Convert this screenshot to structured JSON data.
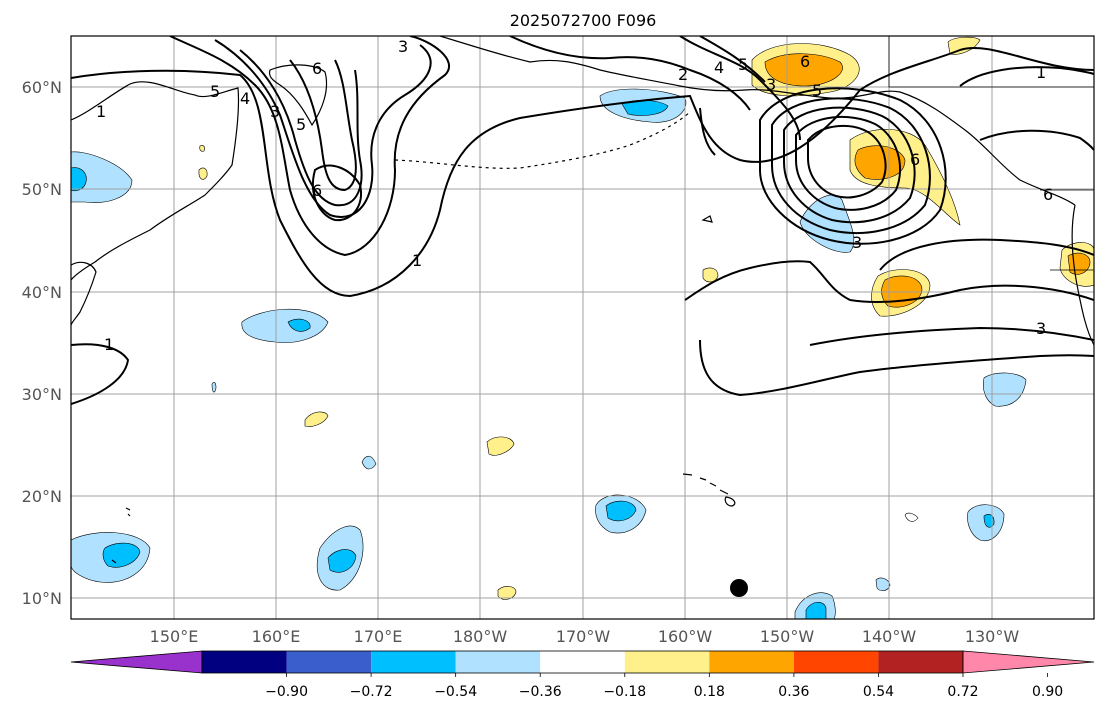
{
  "title": "2025072700 F096",
  "lat_labels": [
    "60°N",
    "50°N",
    "40°N",
    "30°N",
    "20°N",
    "10°N"
  ],
  "lon_labels": [
    "150°E",
    "160°E",
    "170°E",
    "180°W",
    "170°W",
    "160°W",
    "150°W",
    "140°W",
    "130°W"
  ],
  "contour_labels": [
    "1",
    "1",
    "1",
    "1",
    "3",
    "3",
    "3",
    "2",
    "4",
    "5",
    "6",
    "5",
    "4",
    "3",
    "5",
    "6",
    "6",
    "6",
    "5",
    "3",
    "6"
  ],
  "colorbar": {
    "ticks": [
      "−0.90",
      "−0.72",
      "−0.54",
      "−0.36",
      "−0.18",
      "0.18",
      "0.36",
      "0.54",
      "0.72",
      "0.90"
    ],
    "colors": [
      "#9932cc",
      "#000080",
      "#3a5fcd",
      "#00bfff",
      "#b0e2ff",
      "#ffffff",
      "#fff08c",
      "#ffa500",
      "#ff4500",
      "#b22222",
      "#ff88aa"
    ]
  },
  "map": {
    "extent_lon": [
      140,
      245
    ],
    "extent_lat": [
      8,
      65
    ],
    "contour_color": "#000000",
    "grid_color": "#a0a0a0",
    "storm_marker": "filled-black-circle"
  }
}
